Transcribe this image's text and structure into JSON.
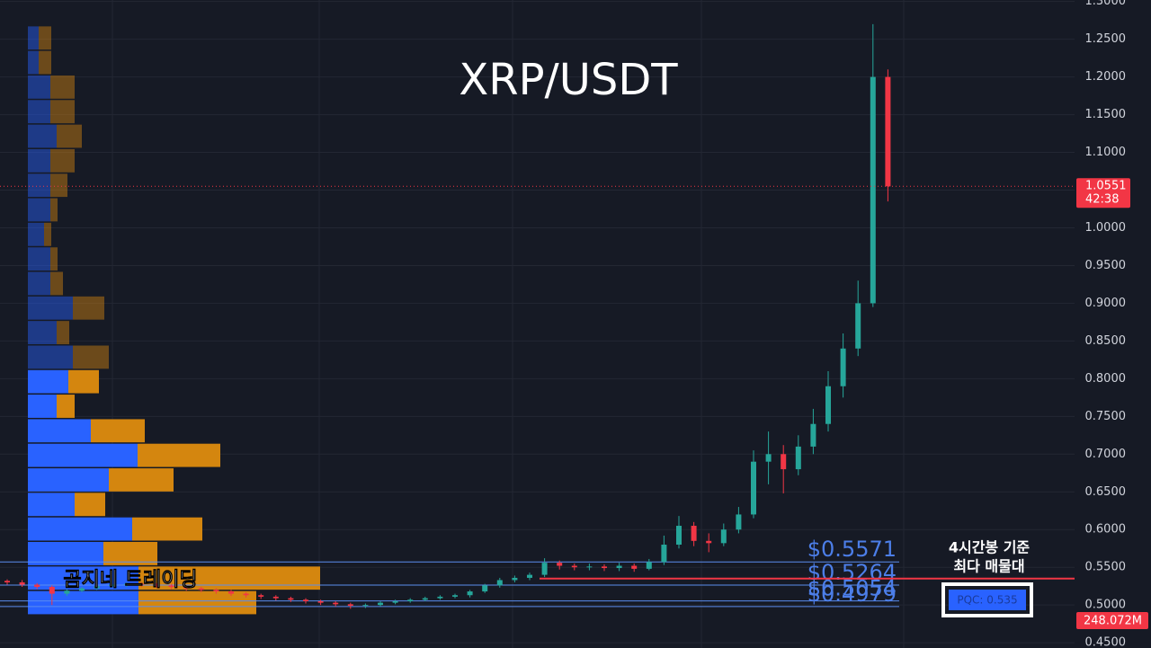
{
  "chart_data": {
    "type": "candlestick",
    "title": "XRP/USDT",
    "watermark": "곰지네 트레이딩",
    "ylim": [
      0.443,
      1.302
    ],
    "yticks": [
      {
        "value": 0.45,
        "label": "0.4500"
      },
      {
        "value": 0.5,
        "label": "0.5000"
      },
      {
        "value": 0.55,
        "label": "0.5500"
      },
      {
        "value": 0.6,
        "label": "0.6000"
      },
      {
        "value": 0.65,
        "label": "0.6500"
      },
      {
        "value": 0.7,
        "label": "0.7000"
      },
      {
        "value": 0.75,
        "label": "0.7500"
      },
      {
        "value": 0.8,
        "label": "0.8000"
      },
      {
        "value": 0.85,
        "label": "0.8500"
      },
      {
        "value": 0.9,
        "label": "0.9000"
      },
      {
        "value": 0.95,
        "label": "0.9500"
      },
      {
        "value": 1.0,
        "label": "1.0000"
      },
      {
        "value": 1.05,
        "label": "1.0500"
      },
      {
        "value": 1.1,
        "label": "1.1000"
      },
      {
        "value": 1.15,
        "label": "1.1500"
      },
      {
        "value": 1.2,
        "label": "1.2000"
      },
      {
        "value": 1.25,
        "label": "1.2500"
      },
      {
        "value": 1.3,
        "label": "1.3000"
      }
    ],
    "up_color": "#26a69a",
    "down_color": "#f23645",
    "open": [
      0.532,
      0.53,
      0.527,
      0.524,
      0.515,
      0.519,
      0.522,
      0.525,
      0.527,
      0.528,
      0.527,
      0.526,
      0.524,
      0.522,
      0.52,
      0.518,
      0.515,
      0.513,
      0.511,
      0.509,
      0.507,
      0.505,
      0.503,
      0.501,
      0.499,
      0.5,
      0.503,
      0.505,
      0.507,
      0.509,
      0.511,
      0.513,
      0.518,
      0.526,
      0.533,
      0.536,
      0.54,
      0.556,
      0.552,
      0.55,
      0.551,
      0.549,
      0.552,
      0.548,
      0.557,
      0.58,
      0.605,
      0.585,
      0.582,
      0.6,
      0.62,
      0.69,
      0.7,
      0.68,
      0.71,
      0.74,
      0.79,
      0.84,
      0.9,
      1.2
    ],
    "high": [
      0.534,
      0.533,
      0.529,
      0.526,
      0.521,
      0.524,
      0.527,
      0.529,
      0.53,
      0.53,
      0.529,
      0.528,
      0.526,
      0.524,
      0.522,
      0.52,
      0.517,
      0.515,
      0.513,
      0.511,
      0.509,
      0.507,
      0.505,
      0.503,
      0.502,
      0.505,
      0.507,
      0.509,
      0.511,
      0.513,
      0.515,
      0.52,
      0.528,
      0.536,
      0.539,
      0.543,
      0.562,
      0.559,
      0.555,
      0.555,
      0.554,
      0.556,
      0.555,
      0.561,
      0.592,
      0.618,
      0.61,
      0.595,
      0.608,
      0.63,
      0.705,
      0.73,
      0.712,
      0.725,
      0.76,
      0.81,
      0.86,
      0.93,
      1.27,
      1.21
    ],
    "low": [
      0.527,
      0.524,
      0.521,
      0.5,
      0.512,
      0.517,
      0.52,
      0.523,
      0.524,
      0.524,
      0.523,
      0.521,
      0.519,
      0.517,
      0.515,
      0.512,
      0.51,
      0.508,
      0.506,
      0.504,
      0.502,
      0.5,
      0.498,
      0.495,
      0.496,
      0.498,
      0.501,
      0.503,
      0.505,
      0.507,
      0.509,
      0.51,
      0.516,
      0.523,
      0.53,
      0.533,
      0.537,
      0.547,
      0.546,
      0.546,
      0.545,
      0.545,
      0.544,
      0.546,
      0.553,
      0.575,
      0.578,
      0.57,
      0.578,
      0.595,
      0.615,
      0.66,
      0.648,
      0.672,
      0.7,
      0.73,
      0.775,
      0.83,
      0.895,
      1.035
    ],
    "close": [
      0.53,
      0.527,
      0.524,
      0.515,
      0.519,
      0.522,
      0.525,
      0.527,
      0.528,
      0.527,
      0.526,
      0.524,
      0.522,
      0.52,
      0.518,
      0.515,
      0.513,
      0.511,
      0.509,
      0.507,
      0.505,
      0.503,
      0.501,
      0.499,
      0.5,
      0.503,
      0.505,
      0.507,
      0.509,
      0.511,
      0.513,
      0.518,
      0.526,
      0.533,
      0.536,
      0.54,
      0.556,
      0.552,
      0.55,
      0.551,
      0.549,
      0.552,
      0.548,
      0.557,
      0.58,
      0.605,
      0.585,
      0.582,
      0.6,
      0.62,
      0.69,
      0.7,
      0.68,
      0.71,
      0.74,
      0.79,
      0.84,
      0.9,
      1.2,
      1.055
    ],
    "volume_profile": {
      "bins": [
        0.486,
        0.5185,
        0.551,
        0.5836,
        0.6161,
        0.6487,
        0.6812,
        0.7138,
        0.7463,
        0.7789,
        0.8114,
        0.8439,
        0.8765,
        0.909,
        0.9416,
        0.9741,
        1.0067,
        1.0392,
        1.0717,
        1.1043,
        1.1368,
        1.1694,
        1.2019,
        1.2345,
        1.267
      ],
      "buy": [
        123,
        123,
        84,
        116,
        52,
        90,
        122,
        70,
        32,
        45,
        50,
        32,
        50,
        25,
        25,
        18,
        25,
        25,
        25,
        32,
        25,
        25,
        12,
        12
      ],
      "sell": [
        131,
        202,
        60,
        78,
        34,
        72,
        92,
        60,
        20,
        34,
        40,
        14,
        35,
        14,
        8,
        8,
        8,
        19,
        27,
        28,
        27,
        27,
        14,
        14
      ],
      "buy_color": "#2962ff",
      "sell_color": "#d4860f"
    },
    "levels": [
      {
        "value": 0.5571,
        "label": "$0.5571"
      },
      {
        "value": 0.5264,
        "label": "$0.5264"
      },
      {
        "value": 0.5054,
        "label": "$0.5054"
      },
      {
        "value": 0.4979,
        "label": "$0.4979"
      }
    ],
    "poc": {
      "value": 0.535,
      "label": "PQC: 0.535",
      "note": [
        "4시간봉 기준",
        "최다 매물대"
      ],
      "color": "#f23645"
    },
    "last_price": {
      "value": 1.0551,
      "label": "1.0551",
      "countdown": "42:38"
    },
    "volume_label": "248.072M"
  }
}
